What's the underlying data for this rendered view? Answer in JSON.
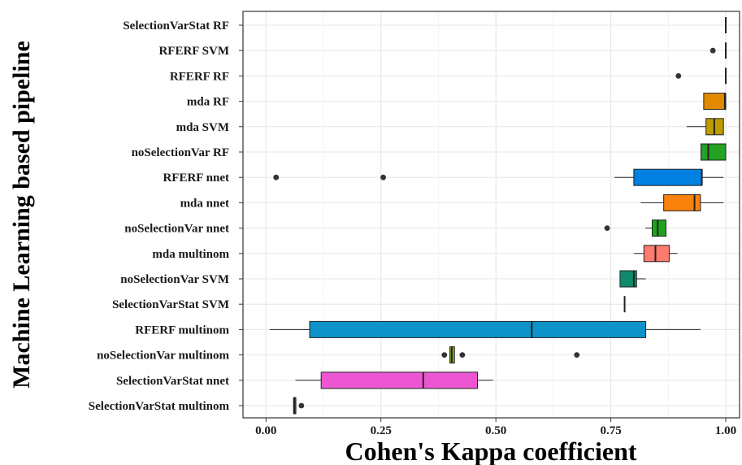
{
  "chart_data": {
    "type": "boxplot",
    "orientation": "horizontal",
    "title": "",
    "xlabel": "Cohen's Kappa coefficient",
    "ylabel": "Machine Learning based pipeline",
    "xlim": [
      -0.05,
      1.03
    ],
    "x_ticks": [
      0.0,
      0.25,
      0.5,
      0.75,
      1.0
    ],
    "x_tick_labels": [
      "0.00",
      "0.25",
      "0.50",
      "0.75",
      "1.00"
    ],
    "grid": true,
    "legend": "none",
    "categories": [
      {
        "label": "SelectionVarStat  RF",
        "color": "#F8766D",
        "min": 1.0,
        "q1": 1.0,
        "median": 1.0,
        "q3": 1.0,
        "max": 1.0,
        "outliers": []
      },
      {
        "label": "RFERF SVM",
        "color": "#F8766D",
        "min": 1.0,
        "q1": 1.0,
        "median": 1.0,
        "q3": 1.0,
        "max": 1.0,
        "outliers": [
          0.972
        ]
      },
      {
        "label": "RFERF RF",
        "color": "#F8766D",
        "min": 1.0,
        "q1": 1.0,
        "median": 1.0,
        "q3": 1.0,
        "max": 1.0,
        "outliers": [
          0.897
        ]
      },
      {
        "label": "mda RF",
        "color": "#E18A00",
        "min": 0.952,
        "q1": 0.952,
        "median": 0.998,
        "q3": 1.0,
        "max": 1.0,
        "outliers": []
      },
      {
        "label": "mda SVM",
        "color": "#BE9C00",
        "min": 0.915,
        "q1": 0.957,
        "median": 0.975,
        "q3": 0.995,
        "max": 0.995,
        "outliers": []
      },
      {
        "label": "noSelectionVar  RF",
        "color": "#24A222",
        "min": 0.946,
        "q1": 0.946,
        "median": 0.962,
        "q3": 1.0,
        "max": 1.0,
        "outliers": []
      },
      {
        "label": "RFERF nnet",
        "color": "#0080E0",
        "min": 0.758,
        "q1": 0.8,
        "median": 0.948,
        "q3": 0.948,
        "max": 0.995,
        "outliers": [
          0.022,
          0.255
        ]
      },
      {
        "label": "mda nnet",
        "color": "#F8820C",
        "min": 0.815,
        "q1": 0.865,
        "median": 0.932,
        "q3": 0.945,
        "max": 0.995,
        "outliers": []
      },
      {
        "label": "noSelectionVar  nnet",
        "color": "#1EA31E",
        "min": 0.825,
        "q1": 0.84,
        "median": 0.852,
        "q3": 0.87,
        "max": 0.87,
        "outliers": [
          0.742
        ]
      },
      {
        "label": "mda multinom",
        "color": "#FF7B6E",
        "min": 0.8,
        "q1": 0.822,
        "median": 0.847,
        "q3": 0.877,
        "max": 0.895,
        "outliers": []
      },
      {
        "label": "noSelectionVar  SVM",
        "color": "#0F8A6B",
        "min": 0.77,
        "q1": 0.77,
        "median": 0.8,
        "q3": 0.806,
        "max": 0.826,
        "outliers": []
      },
      {
        "label": "SelectionVarStat  SVM",
        "color": "#0F8A6B",
        "min": 0.78,
        "q1": 0.78,
        "median": 0.78,
        "q3": 0.78,
        "max": 0.78,
        "outliers": []
      },
      {
        "label": "RFERF multinom",
        "color": "#0E93C9",
        "min": 0.008,
        "q1": 0.095,
        "median": 0.578,
        "q3": 0.826,
        "max": 0.945,
        "outliers": []
      },
      {
        "label": "noSelectionVar  multinom",
        "color": "#86B01A",
        "min": 0.4,
        "q1": 0.4,
        "median": 0.404,
        "q3": 0.41,
        "max": 0.41,
        "outliers": [
          0.388,
          0.427,
          0.676
        ]
      },
      {
        "label": "SelectionVarStat  nnet",
        "color": "#EC56D3",
        "min": 0.064,
        "q1": 0.12,
        "median": 0.342,
        "q3": 0.46,
        "max": 0.494,
        "outliers": []
      },
      {
        "label": "SelectionVarStat  multinom",
        "color": "#C77CFF",
        "min": 0.06,
        "q1": 0.06,
        "median": 0.062,
        "q3": 0.065,
        "max": 0.065,
        "outliers": [
          0.077
        ]
      }
    ]
  }
}
